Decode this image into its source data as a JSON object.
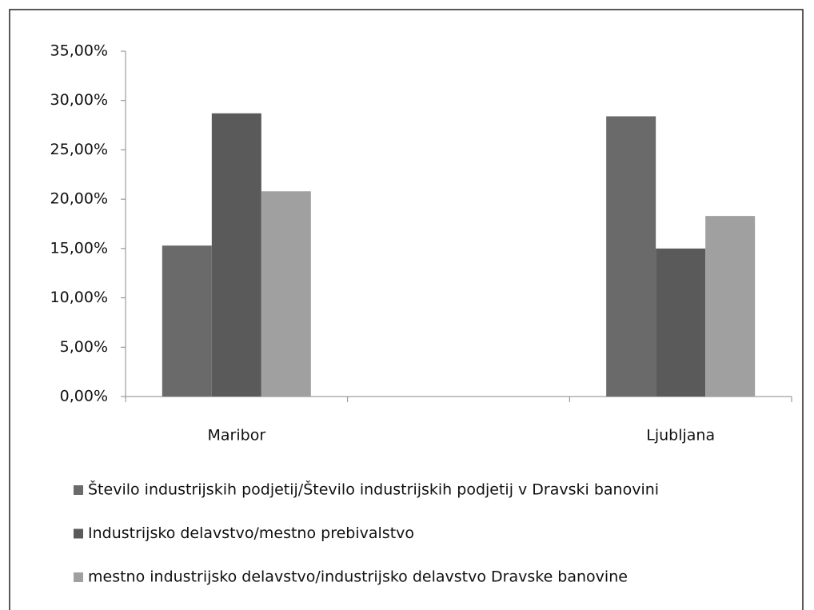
{
  "chart_data": {
    "type": "bar",
    "categories": [
      "Maribor",
      null,
      "Ljubljana"
    ],
    "series": [
      {
        "name": "Število industrijskih podjetij/Število industrijskih podjetij v Dravski banovini",
        "color": "#6a6a6a",
        "values": [
          15.3,
          null,
          28.4
        ]
      },
      {
        "name": "Industrijsko delavstvo/mestno prebivalstvo",
        "color": "#5a5a5a",
        "values": [
          28.7,
          null,
          15.0
        ]
      },
      {
        "name": "mestno industrijsko delavstvo/industrijsko delavstvo Dravske banovine",
        "color": "#a0a0a0",
        "values": [
          20.8,
          null,
          18.3
        ]
      }
    ],
    "ylim": [
      0,
      35
    ],
    "yticks": [
      {
        "value": 0,
        "label": "0,00%"
      },
      {
        "value": 5,
        "label": "5,00%"
      },
      {
        "value": 10,
        "label": "10,00%"
      },
      {
        "value": 15,
        "label": "15,00%"
      },
      {
        "value": 20,
        "label": "20,00%"
      },
      {
        "value": 25,
        "label": "25,00%"
      },
      {
        "value": 30,
        "label": "30,00%"
      },
      {
        "value": 35,
        "label": "35,00%"
      }
    ],
    "legend": "bottom"
  }
}
